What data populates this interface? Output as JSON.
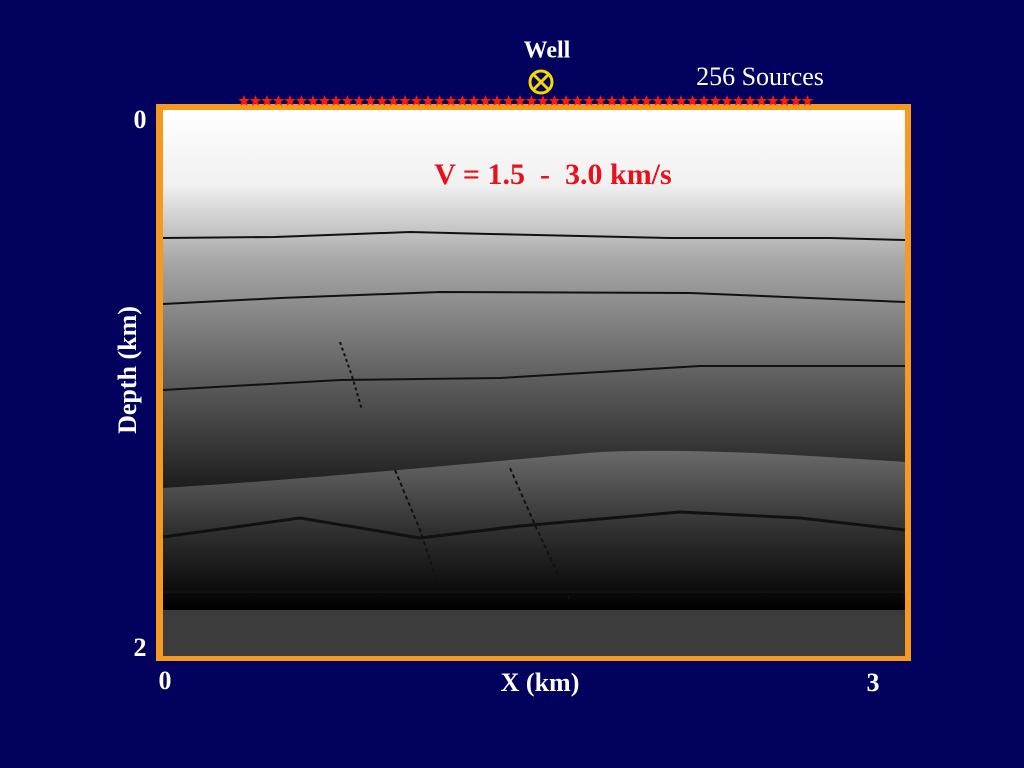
{
  "figure": {
    "well_label": "Well",
    "sources_label": "256 Sources",
    "annotation": "V = 1.5  -  3.0 km/s",
    "x_axis": {
      "label": "X (km)",
      "ticks": [
        0,
        3
      ]
    },
    "y_axis": {
      "label": "Depth (km)",
      "ticks": [
        0,
        2
      ]
    }
  }
}
